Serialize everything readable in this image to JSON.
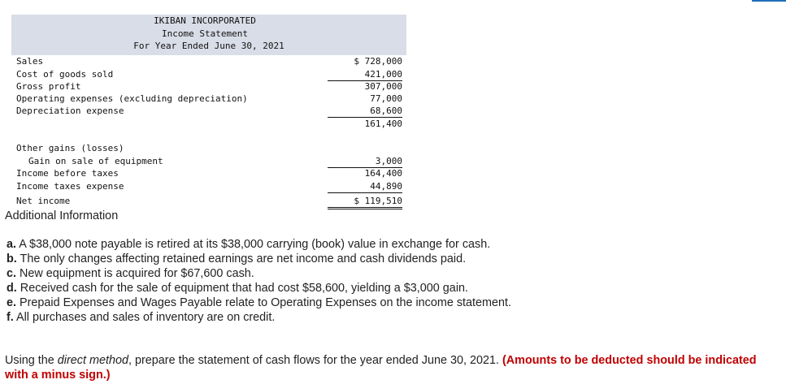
{
  "statement": {
    "company": "IKIBAN INCORPORATED",
    "title": "Income Statement",
    "period": "For Year Ended June 30, 2021",
    "rows": [
      {
        "label": "Sales",
        "amount": "$ 728,000"
      },
      {
        "label": "Cost of goods sold",
        "amount": "421,000"
      },
      {
        "label": "Gross profit",
        "amount": "307,000"
      },
      {
        "label": "Operating expenses (excluding depreciation)",
        "amount": "77,000"
      },
      {
        "label": "Depreciation expense",
        "amount": "68,600"
      },
      {
        "label": "",
        "amount": "161,400"
      },
      {
        "label": "Other gains (losses)",
        "amount": ""
      },
      {
        "label": "Gain on sale of equipment",
        "amount": "3,000"
      },
      {
        "label": "Income before taxes",
        "amount": "164,400"
      },
      {
        "label": "Income taxes expense",
        "amount": "44,890"
      },
      {
        "label": "Net income",
        "amount": "$ 119,510"
      }
    ]
  },
  "additional": {
    "heading": "Additional Information",
    "items": [
      {
        "letter": "a.",
        "text": "A $38,000 note payable is retired at its $38,000 carrying (book) value in exchange for cash."
      },
      {
        "letter": "b.",
        "text": "The only changes affecting retained earnings are net income and cash dividends paid."
      },
      {
        "letter": "c.",
        "text": "New equipment is acquired for $67,600 cash."
      },
      {
        "letter": "d.",
        "text": "Received cash for the sale of equipment that had cost $58,600, yielding a $3,000 gain."
      },
      {
        "letter": "e.",
        "text": "Prepaid Expenses and Wages Payable relate to Operating Expenses on the income statement."
      },
      {
        "letter": "f.",
        "text": "All purchases and sales of inventory are on credit."
      }
    ]
  },
  "instruction": {
    "before": "Using the ",
    "method": "direct method",
    "after": ", prepare the statement of cash flows for the year ended June 30, 2021. ",
    "note": "(Amounts to be deducted should be indicated with a minus sign.)"
  }
}
